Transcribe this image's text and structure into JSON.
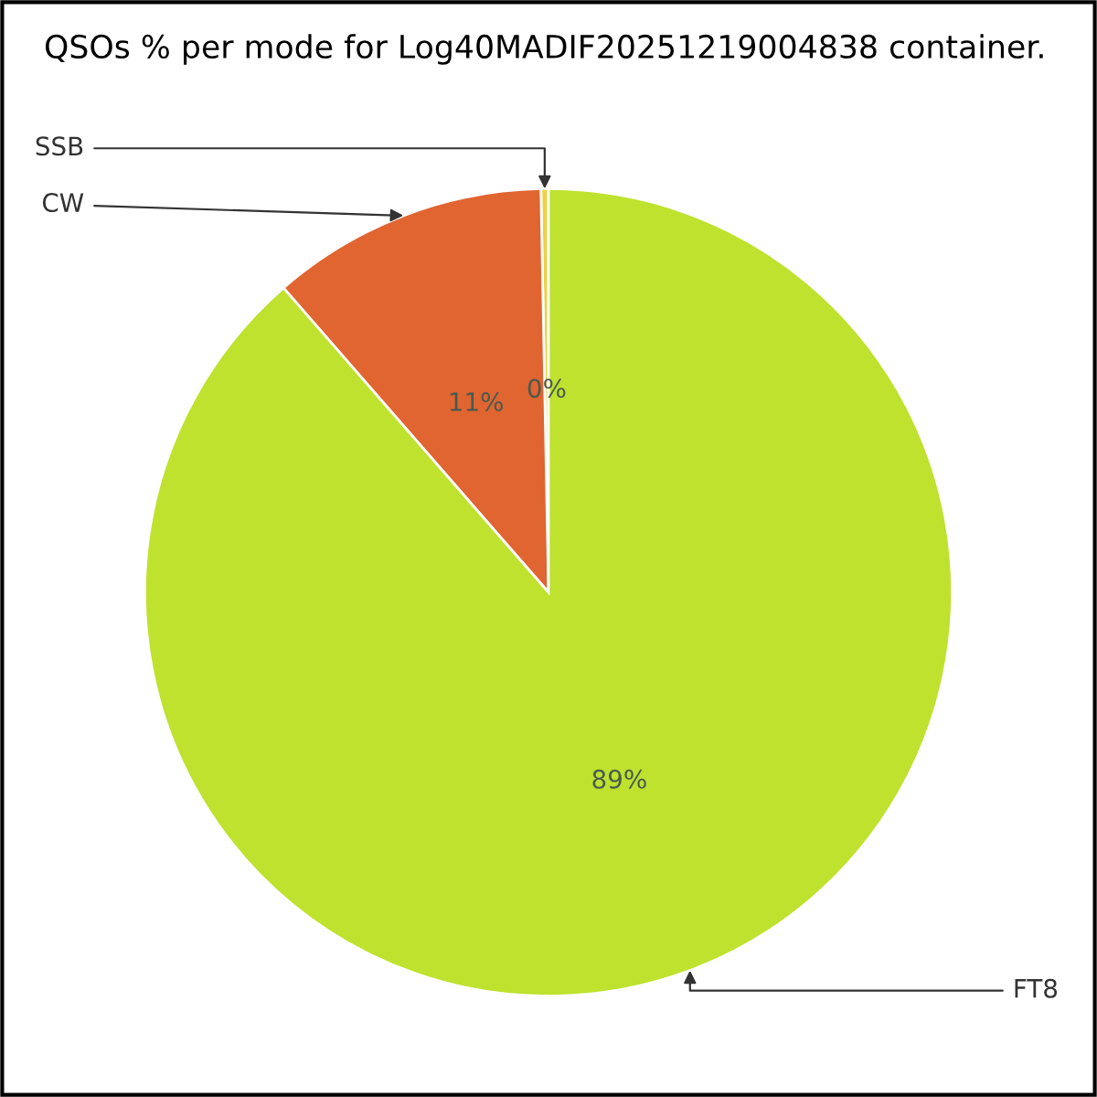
{
  "chart_data": {
    "type": "pie",
    "title": "QSOs % per mode for Log40MADIF20251219004838 container.",
    "categories": [
      "SSB",
      "CW",
      "FT8"
    ],
    "values": [
      0.3,
      11.1,
      88.6
    ],
    "value_labels": [
      "0%",
      "11%",
      "89%"
    ],
    "colors": [
      "#f0d040",
      "#e06530",
      "#bee22e"
    ],
    "legend": false
  }
}
